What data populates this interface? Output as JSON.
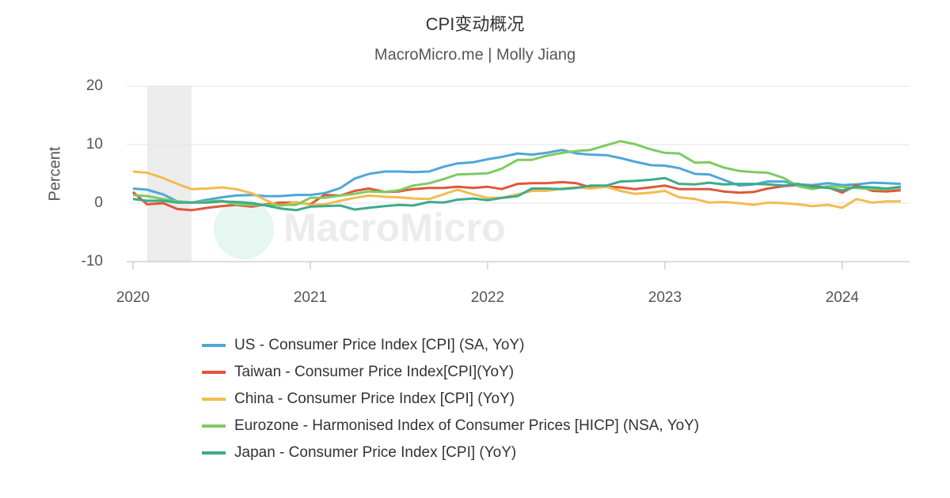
{
  "chart_data": {
    "type": "line",
    "title": "CPI变动概况",
    "subtitle": "MacroMicro.me | Molly Jiang",
    "y_label": "Percent",
    "watermark": "MacroMicro",
    "x": [
      2020,
      2020.08,
      2020.17,
      2020.25,
      2020.33,
      2020.42,
      2020.5,
      2020.58,
      2020.67,
      2020.75,
      2020.83,
      2020.92,
      2021,
      2021.08,
      2021.17,
      2021.25,
      2021.33,
      2021.42,
      2021.5,
      2021.58,
      2021.67,
      2021.75,
      2021.83,
      2021.92,
      2022,
      2022.08,
      2022.17,
      2022.25,
      2022.33,
      2022.42,
      2022.5,
      2022.58,
      2022.67,
      2022.75,
      2022.83,
      2022.92,
      2023,
      2023.08,
      2023.17,
      2023.25,
      2023.33,
      2023.42,
      2023.5,
      2023.58,
      2023.67,
      2023.75,
      2023.83,
      2023.92,
      2024,
      2024.08,
      2024.17,
      2024.25,
      2024.33
    ],
    "xlim": [
      2020,
      2024.38
    ],
    "xticks": [
      2020,
      2021,
      2022,
      2023,
      2024
    ],
    "ylim": [
      -10,
      20
    ],
    "yticks": [
      -10,
      0,
      10,
      20
    ],
    "grid": true,
    "shaded_band": [
      2020.08,
      2020.33
    ],
    "series": [
      {
        "name": "US - Consumer Price Index [CPI] (SA, YoY)",
        "color": "#4ea7d7",
        "values": [
          2.5,
          2.3,
          1.5,
          0.3,
          0.1,
          0.6,
          1.0,
          1.3,
          1.4,
          1.2,
          1.2,
          1.4,
          1.4,
          1.7,
          2.6,
          4.2,
          5.0,
          5.4,
          5.4,
          5.3,
          5.4,
          6.2,
          6.8,
          7.0,
          7.5,
          7.9,
          8.5,
          8.3,
          8.6,
          9.1,
          8.5,
          8.3,
          8.2,
          7.7,
          7.1,
          6.5,
          6.4,
          6.0,
          5.0,
          4.9,
          4.0,
          3.0,
          3.2,
          3.7,
          3.7,
          3.2,
          3.1,
          3.4,
          3.1,
          3.2,
          3.5,
          3.4,
          3.3
        ]
      },
      {
        "name": "Taiwan - Consumer Price Index[CPI](YoY)",
        "color": "#e0563b",
        "values": [
          1.9,
          -0.2,
          0.0,
          -1.0,
          -1.2,
          -0.8,
          -0.5,
          -0.3,
          -0.6,
          -0.2,
          0.1,
          0.1,
          -0.2,
          1.4,
          1.3,
          2.1,
          2.5,
          1.9,
          2.0,
          2.4,
          2.6,
          2.6,
          2.8,
          2.6,
          2.8,
          2.4,
          3.3,
          3.4,
          3.4,
          3.6,
          3.4,
          2.7,
          2.8,
          2.7,
          2.4,
          2.7,
          3.0,
          2.4,
          2.4,
          2.4,
          2.0,
          1.8,
          1.9,
          2.5,
          2.9,
          3.1,
          2.9,
          2.7,
          1.8,
          3.1,
          2.1,
          2.0,
          2.2
        ]
      },
      {
        "name": "China - Consumer Price Index [CPI] (YoY)",
        "color": "#f4bb4f",
        "values": [
          5.4,
          5.2,
          4.3,
          3.3,
          2.4,
          2.5,
          2.7,
          2.4,
          1.7,
          0.5,
          -0.5,
          0.2,
          -0.3,
          -0.2,
          0.4,
          0.9,
          1.3,
          1.1,
          1.0,
          0.8,
          0.7,
          1.5,
          2.3,
          1.5,
          0.9,
          0.9,
          1.5,
          2.1,
          2.1,
          2.5,
          2.7,
          2.5,
          2.8,
          2.1,
          1.6,
          1.8,
          2.1,
          1.0,
          0.7,
          0.1,
          0.2,
          0.0,
          -0.3,
          0.1,
          0.0,
          -0.2,
          -0.5,
          -0.3,
          -0.8,
          0.7,
          0.1,
          0.3,
          0.3
        ]
      },
      {
        "name": "Eurozone - Harmonised Index of Consumer Prices [HICP] (NSA, YoY)",
        "color": "#7dcb63",
        "values": [
          1.4,
          1.2,
          0.7,
          0.3,
          0.1,
          0.3,
          0.4,
          -0.2,
          -0.3,
          -0.3,
          -0.3,
          -0.3,
          0.9,
          0.9,
          1.3,
          1.6,
          2.0,
          1.9,
          2.2,
          3.0,
          3.4,
          4.1,
          4.9,
          5.0,
          5.1,
          5.9,
          7.4,
          7.4,
          8.1,
          8.6,
          8.9,
          9.1,
          9.9,
          10.6,
          10.1,
          9.2,
          8.6,
          8.5,
          6.9,
          7.0,
          6.1,
          5.5,
          5.3,
          5.2,
          4.3,
          2.9,
          2.4,
          2.9,
          2.8,
          2.6,
          2.4,
          2.4,
          2.6
        ]
      },
      {
        "name": "Japan - Consumer Price Index [CPI] (YoY)",
        "color": "#3dab8b",
        "values": [
          0.7,
          0.4,
          0.4,
          0.1,
          0.1,
          0.1,
          0.3,
          0.2,
          0.0,
          -0.4,
          -0.9,
          -1.2,
          -0.6,
          -0.5,
          -0.4,
          -1.1,
          -0.8,
          -0.5,
          -0.3,
          -0.4,
          0.2,
          0.1,
          0.6,
          0.8,
          0.5,
          0.9,
          1.2,
          2.5,
          2.5,
          2.4,
          2.6,
          3.0,
          3.0,
          3.7,
          3.8,
          4.0,
          4.3,
          3.3,
          3.2,
          3.5,
          3.2,
          3.3,
          3.3,
          3.2,
          3.0,
          3.3,
          2.8,
          2.6,
          2.2,
          2.8,
          2.7,
          2.5,
          2.8
        ]
      }
    ]
  }
}
